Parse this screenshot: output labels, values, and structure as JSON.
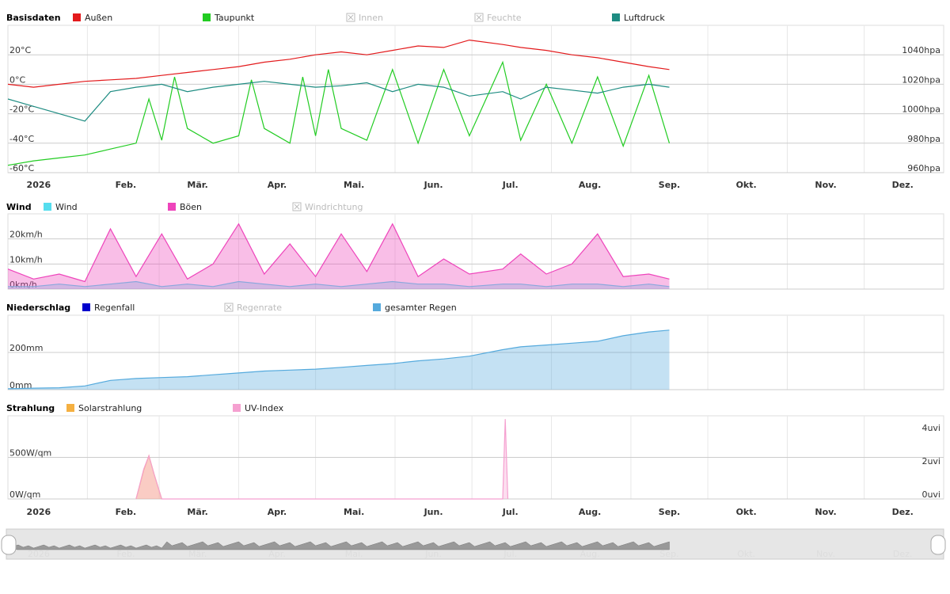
{
  "chart_data": [
    {
      "type": "line",
      "title": "Basisdaten",
      "legend": [
        {
          "name": "Außen",
          "color": "#e31a1c",
          "enabled": true
        },
        {
          "name": "Taupunkt",
          "color": "#22cc22",
          "enabled": true
        },
        {
          "name": "Innen",
          "color": "#bbbbbb",
          "enabled": false
        },
        {
          "name": "Feuchte",
          "color": "#bbbbbb",
          "enabled": false
        },
        {
          "name": "Luftdruck",
          "color": "#1e8c82",
          "enabled": true
        }
      ],
      "y_left_ticks": [
        "20°C",
        "0°C",
        "-20°C",
        "-40°C",
        "-60°C"
      ],
      "y_left_values": [
        20,
        0,
        -20,
        -40,
        -60
      ],
      "y_right_ticks": [
        "1040hpa",
        "1020hpa",
        "1000hpa",
        "980hpa",
        "960hpa"
      ],
      "y_right_values": [
        1040,
        1020,
        1000,
        980,
        960
      ],
      "ylim": [
        -60,
        40
      ],
      "ylim_right": [
        960,
        1060
      ],
      "series": [
        {
          "name": "Außen",
          "x": [
            0,
            10,
            20,
            30,
            40,
            50,
            60,
            70,
            80,
            90,
            100,
            110,
            120,
            130,
            140,
            150,
            160,
            170,
            180,
            193,
            200,
            210,
            220,
            230,
            240,
            250,
            258
          ],
          "y": [
            0,
            -2,
            0,
            2,
            3,
            4,
            6,
            8,
            10,
            12,
            15,
            17,
            20,
            22,
            20,
            23,
            26,
            25,
            30,
            27,
            25,
            23,
            20,
            18,
            15,
            12,
            10
          ]
        },
        {
          "name": "Taupunkt",
          "x": [
            0,
            10,
            20,
            30,
            40,
            50,
            55,
            60,
            65,
            70,
            80,
            90,
            95,
            100,
            110,
            115,
            120,
            125,
            130,
            140,
            150,
            160,
            170,
            180,
            193,
            200,
            210,
            220,
            230,
            240,
            250,
            258
          ],
          "y": [
            -55,
            -52,
            -50,
            -48,
            -44,
            -40,
            -10,
            -38,
            5,
            -30,
            -40,
            -35,
            3,
            -30,
            -40,
            5,
            -35,
            10,
            -30,
            -38,
            10,
            -40,
            10,
            -35,
            15,
            -38,
            0,
            -40,
            5,
            -42,
            6,
            -40
          ]
        },
        {
          "name": "Luftdruck",
          "x": [
            0,
            10,
            20,
            30,
            40,
            50,
            60,
            70,
            80,
            90,
            100,
            110,
            120,
            130,
            140,
            150,
            160,
            170,
            180,
            193,
            200,
            210,
            220,
            230,
            240,
            250,
            258
          ],
          "y": [
            1010,
            1005,
            1000,
            995,
            1015,
            1018,
            1020,
            1015,
            1018,
            1020,
            1022,
            1020,
            1018,
            1019,
            1021,
            1015,
            1020,
            1018,
            1012,
            1015,
            1010,
            1018,
            1016,
            1014,
            1018,
            1020,
            1018
          ]
        }
      ]
    },
    {
      "type": "area",
      "title": "Wind",
      "legend": [
        {
          "name": "Wind",
          "color": "#55ddee",
          "enabled": true
        },
        {
          "name": "Böen",
          "color": "#ee44bb",
          "enabled": true
        },
        {
          "name": "Windrichtung",
          "color": "#bbbbbb",
          "enabled": false
        }
      ],
      "y_left_ticks": [
        "20km/h",
        "10km/h",
        "0km/h"
      ],
      "y_left_values": [
        20,
        10,
        0
      ],
      "ylim": [
        0,
        30
      ],
      "series": [
        {
          "name": "Wind",
          "x": [
            0,
            10,
            20,
            30,
            40,
            50,
            60,
            70,
            80,
            90,
            100,
            110,
            120,
            130,
            140,
            150,
            160,
            170,
            180,
            193,
            200,
            210,
            220,
            230,
            240,
            250,
            258
          ],
          "y": [
            1,
            1,
            2,
            1,
            2,
            3,
            1,
            2,
            1,
            3,
            2,
            1,
            2,
            1,
            2,
            3,
            2,
            2,
            1,
            2,
            2,
            1,
            2,
            2,
            1,
            2,
            1
          ]
        },
        {
          "name": "Böen",
          "x": [
            0,
            10,
            20,
            30,
            40,
            50,
            60,
            70,
            80,
            90,
            100,
            110,
            120,
            130,
            140,
            150,
            160,
            170,
            180,
            193,
            200,
            210,
            220,
            230,
            240,
            250,
            258
          ],
          "y": [
            8,
            4,
            6,
            3,
            24,
            5,
            22,
            4,
            10,
            26,
            6,
            18,
            5,
            22,
            7,
            26,
            5,
            12,
            6,
            8,
            14,
            6,
            10,
            22,
            5,
            6,
            4
          ]
        }
      ]
    },
    {
      "type": "area",
      "title": "Niederschlag",
      "legend": [
        {
          "name": "Regenfall",
          "color": "#0000cc",
          "enabled": true
        },
        {
          "name": "Regenrate",
          "color": "#bbbbbb",
          "enabled": false
        },
        {
          "name": "gesamter Regen",
          "color": "#55aadd",
          "enabled": true
        }
      ],
      "y_left_ticks": [
        "200mm",
        "0mm"
      ],
      "y_left_values": [
        200,
        0
      ],
      "ylim": [
        0,
        400
      ],
      "series": [
        {
          "name": "gesamter Regen",
          "x": [
            0,
            10,
            20,
            30,
            40,
            50,
            60,
            70,
            80,
            90,
            100,
            110,
            120,
            130,
            140,
            150,
            160,
            170,
            180,
            193,
            200,
            210,
            220,
            230,
            240,
            250,
            258
          ],
          "y": [
            5,
            8,
            10,
            20,
            50,
            60,
            65,
            70,
            80,
            90,
            100,
            105,
            110,
            120,
            130,
            140,
            155,
            165,
            180,
            215,
            230,
            240,
            250,
            260,
            290,
            310,
            320
          ]
        }
      ]
    },
    {
      "type": "area",
      "title": "Strahlung",
      "legend": [
        {
          "name": "Solarstrahlung",
          "color": "#f5b041",
          "enabled": true
        },
        {
          "name": "UV-Index",
          "color": "#f5a0d0",
          "enabled": true
        }
      ],
      "y_left_ticks": [
        "500W/qm",
        "0W/qm"
      ],
      "y_left_values": [
        500,
        0
      ],
      "y_right_ticks": [
        "4uvi",
        "2uvi",
        "0uvi"
      ],
      "y_right_values": [
        4,
        2,
        0
      ],
      "ylim": [
        0,
        1000
      ],
      "series": [
        {
          "name": "Solarstrahlung",
          "x": [
            50,
            53,
            55,
            57,
            60
          ],
          "y": [
            0,
            350,
            520,
            300,
            0
          ]
        },
        {
          "name": "UV-Index",
          "x": [
            50,
            53,
            55,
            57,
            60,
            193,
            194,
            195
          ],
          "y": [
            0,
            1.8,
            2.6,
            1.5,
            0,
            0,
            4.8,
            0
          ]
        }
      ]
    }
  ],
  "x_axis": {
    "year_label": "2026",
    "months": [
      "Feb.",
      "Mär.",
      "Apr.",
      "Mai.",
      "Jun.",
      "Jul.",
      "Aug.",
      "Sep.",
      "Okt.",
      "Nov.",
      "Dez."
    ]
  },
  "navigator": {
    "year_label": "2026",
    "months": [
      "Feb.",
      "Mär.",
      "Apr.",
      "Mai.",
      "Jun.",
      "Jul.",
      "Aug.",
      "Sep.",
      "Okt.",
      "Nov.",
      "Dez."
    ]
  }
}
